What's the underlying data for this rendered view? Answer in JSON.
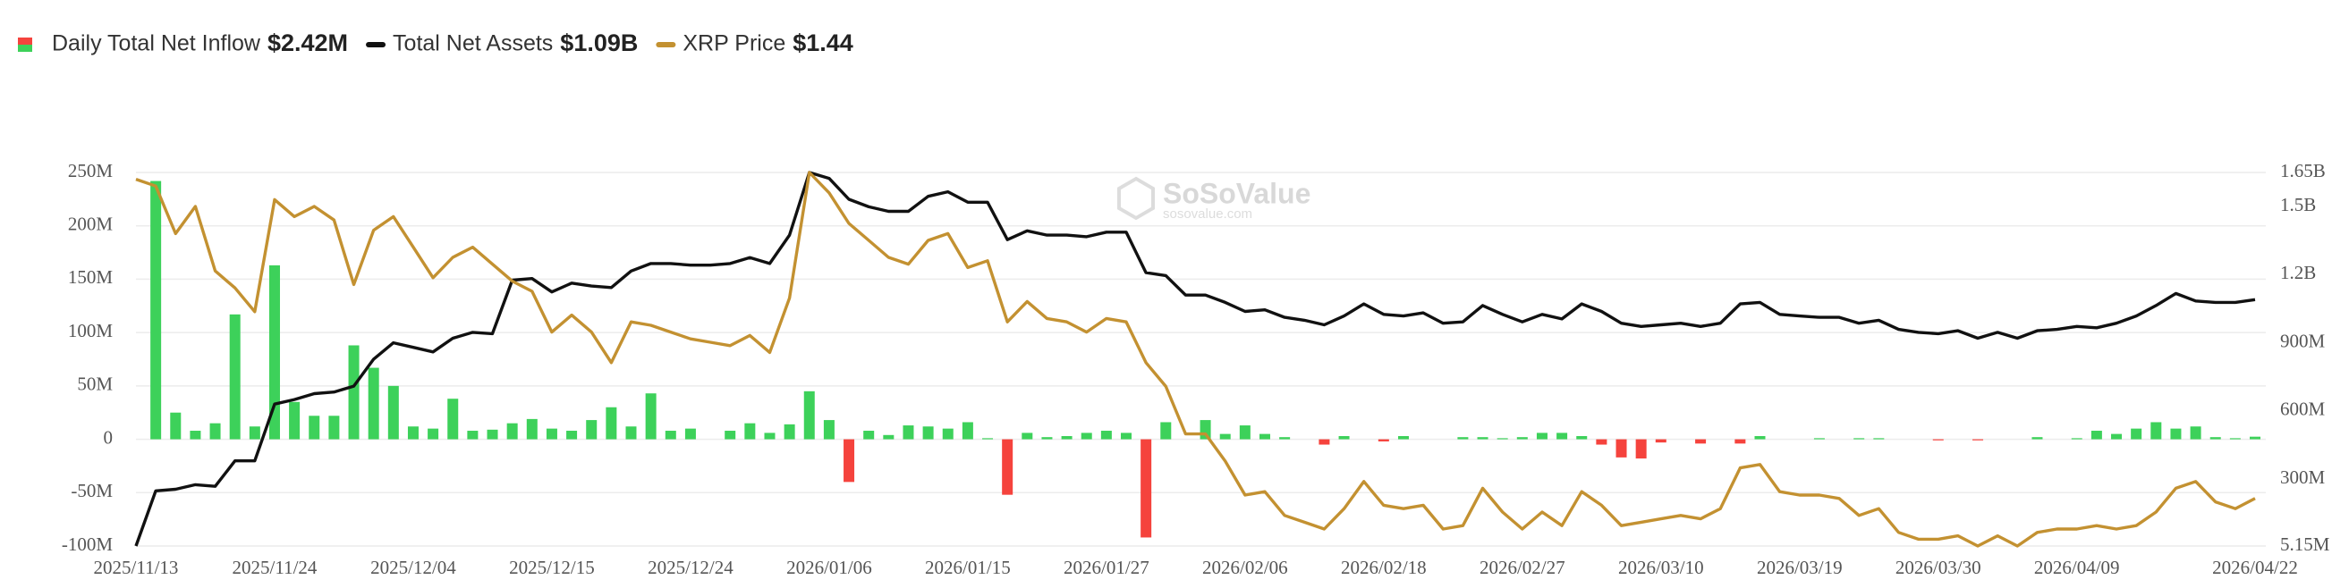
{
  "chart_data": {
    "type": "combo",
    "watermark": {
      "title": "SoSoValue",
      "subtitle": "sosovalue.com"
    },
    "categories": [
      "2025/11/13",
      null,
      null,
      null,
      null,
      null,
      null,
      "2025/11/24",
      null,
      null,
      null,
      null,
      null,
      null,
      "2025/12/04",
      null,
      null,
      null,
      null,
      null,
      null,
      "2025/12/15",
      null,
      null,
      null,
      null,
      null,
      null,
      "2025/12/24",
      null,
      null,
      null,
      null,
      null,
      null,
      "2026/01/06",
      null,
      null,
      null,
      null,
      null,
      null,
      "2026/01/15",
      null,
      null,
      null,
      null,
      null,
      null,
      "2026/01/27",
      null,
      null,
      null,
      null,
      null,
      null,
      "2026/02/06",
      null,
      null,
      null,
      null,
      null,
      null,
      "2026/02/18",
      null,
      null,
      null,
      null,
      null,
      null,
      "2026/02/27",
      null,
      null,
      null,
      null,
      null,
      null,
      "2026/03/10",
      null,
      null,
      null,
      null,
      null,
      null,
      "2026/03/19",
      null,
      null,
      null,
      null,
      null,
      null,
      "2026/03/30",
      null,
      null,
      null,
      null,
      null,
      null,
      "2026/04/09",
      null,
      null,
      null,
      null,
      null,
      null,
      null,
      null,
      "2026/04/22"
    ],
    "ylim": [
      -100,
      250
    ],
    "yticks": [
      {
        "value": -100,
        "label": "-100M"
      },
      {
        "value": -50,
        "label": "-50M"
      },
      0,
      {
        "value": 50,
        "label": "50M"
      },
      {
        "value": 100,
        "label": "100M"
      },
      {
        "value": 150,
        "label": "150M"
      },
      {
        "value": 200,
        "label": "200M"
      },
      {
        "value": 250,
        "label": "250M"
      }
    ],
    "y2lim": [
      5.15,
      1650
    ],
    "y2ticks": [
      {
        "value": 5.15,
        "label": "5.15M"
      },
      {
        "value": 300,
        "label": "300M"
      },
      {
        "value": 600,
        "label": "600M"
      },
      {
        "value": 900,
        "label": "900M"
      },
      {
        "value": 1200,
        "label": "1.2B"
      },
      {
        "value": 1500,
        "label": "1.5B"
      },
      {
        "value": 1650,
        "label": "1.65B"
      }
    ],
    "y3lim": [
      1.3,
      2.4
    ],
    "grid": true,
    "series": [
      {
        "name": "Daily Total Net Inflow",
        "latest": "$2.42M",
        "type": "bar",
        "color": "#3dd15a",
        "negative_color": "#f5433d",
        "values": [
          0,
          242,
          25,
          8,
          15,
          117,
          12,
          163,
          35,
          22,
          22,
          88,
          67,
          50,
          12,
          10,
          38,
          8,
          9,
          15,
          19,
          10,
          8,
          18,
          30,
          12,
          43,
          8,
          10,
          0,
          8,
          15,
          6,
          14,
          45,
          18,
          -40,
          8,
          4,
          13,
          12,
          10,
          16,
          1,
          -52,
          6,
          2,
          3,
          6,
          8,
          6,
          -92,
          16,
          0,
          18,
          5,
          13,
          5,
          2,
          0,
          -5,
          3,
          0,
          -2,
          3,
          0,
          0,
          2,
          2,
          1,
          2,
          6,
          6,
          3,
          -5,
          -17,
          -18,
          -3,
          0,
          -4,
          0,
          -4,
          3,
          0,
          0,
          1,
          0,
          1,
          1,
          0,
          0,
          -1,
          0,
          -1,
          0,
          0,
          2,
          0,
          1,
          8,
          5,
          10,
          16,
          10,
          12,
          2,
          1,
          2.42
        ]
      },
      {
        "name": "Total Net Assets",
        "latest": "$1.09B",
        "type": "line",
        "axis": "y2",
        "color": "#111111",
        "values": [
          5.15,
          248,
          255,
          275,
          268,
          380,
          380,
          630,
          650,
          676,
          683,
          709,
          828,
          900,
          880,
          860,
          920,
          946,
          940,
          1176,
          1183,
          1124,
          1163,
          1150,
          1143,
          1216,
          1249,
          1249,
          1242,
          1242,
          1249,
          1275,
          1249,
          1374,
          1650,
          1624,
          1532,
          1499,
          1479,
          1479,
          1545,
          1565,
          1519,
          1519,
          1354,
          1393,
          1374,
          1374,
          1367,
          1387,
          1387,
          1209,
          1196,
          1110,
          1110,
          1078,
          1038,
          1045,
          1012,
          999,
          979,
          1018,
          1071,
          1025,
          1018,
          1032,
          986,
          992,
          1064,
          1025,
          992,
          1025,
          1005,
          1071,
          1038,
          986,
          972,
          979,
          986,
          972,
          986,
          1071,
          1078,
          1025,
          1018,
          1012,
          1012,
          986,
          999,
          959,
          946,
          940,
          953,
          920,
          946,
          920,
          953,
          959,
          972,
          966,
          986,
          1018,
          1064,
          1117,
          1084,
          1078,
          1078,
          1090
        ]
      },
      {
        "name": "XRP Price",
        "latest": "$1.44",
        "type": "line",
        "axis": "y3",
        "color": "#c39131",
        "values": [
          2.38,
          2.36,
          2.22,
          2.3,
          2.11,
          2.06,
          1.99,
          2.32,
          2.27,
          2.3,
          2.26,
          2.07,
          2.23,
          2.27,
          2.18,
          2.09,
          2.15,
          2.18,
          2.13,
          2.08,
          2.05,
          1.93,
          1.98,
          1.93,
          1.84,
          1.96,
          1.95,
          1.93,
          1.91,
          1.9,
          1.89,
          1.92,
          1.87,
          2.03,
          2.4,
          2.34,
          2.25,
          2.2,
          2.15,
          2.13,
          2.2,
          2.22,
          2.12,
          2.14,
          1.96,
          2.02,
          1.97,
          1.96,
          1.93,
          1.97,
          1.96,
          1.84,
          1.77,
          1.63,
          1.63,
          1.55,
          1.45,
          1.46,
          1.39,
          1.37,
          1.35,
          1.41,
          1.49,
          1.42,
          1.41,
          1.42,
          1.35,
          1.36,
          1.47,
          1.4,
          1.35,
          1.4,
          1.36,
          1.46,
          1.42,
          1.36,
          1.37,
          1.38,
          1.39,
          1.38,
          1.41,
          1.53,
          1.54,
          1.46,
          1.45,
          1.45,
          1.44,
          1.39,
          1.41,
          1.34,
          1.32,
          1.32,
          1.33,
          1.3,
          1.33,
          1.3,
          1.34,
          1.35,
          1.35,
          1.36,
          1.35,
          1.36,
          1.4,
          1.47,
          1.49,
          1.43,
          1.41,
          1.44
        ]
      }
    ]
  }
}
